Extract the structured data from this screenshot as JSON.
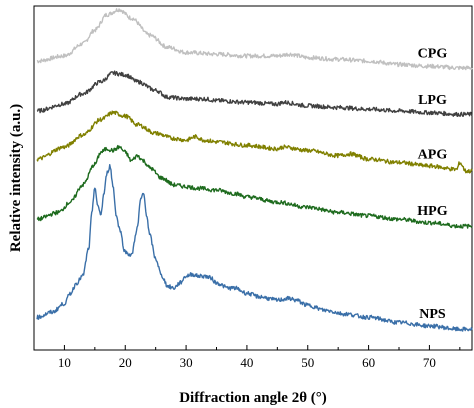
{
  "chart_data": {
    "type": "line",
    "title": "",
    "xlabel": "Diffraction angle 2θ (°)",
    "ylabel": "Relative intensity (a.u.)",
    "xlim": [
      5,
      77
    ],
    "x_ticks": [
      "10",
      "20",
      "30",
      "40",
      "50",
      "60",
      "70"
    ],
    "x_tick_values": [
      10,
      20,
      30,
      40,
      50,
      60,
      70
    ],
    "y_ticks": false,
    "grid": false,
    "legend": "inline labels at right of each curve",
    "series": [
      {
        "name": "CPG",
        "color": "#c0c0c0",
        "offset": 0.84,
        "points": [
          [
            5.5,
            0.0
          ],
          [
            10,
            0.015
          ],
          [
            13,
            0.05
          ],
          [
            15,
            0.09
          ],
          [
            17,
            0.135
          ],
          [
            19,
            0.15
          ],
          [
            21,
            0.125
          ],
          [
            24,
            0.075
          ],
          [
            27,
            0.04
          ],
          [
            30,
            0.025
          ],
          [
            35,
            0.02
          ],
          [
            40,
            0.015
          ],
          [
            45,
            0.015
          ],
          [
            47,
            0.02
          ],
          [
            50,
            0.01
          ],
          [
            55,
            0.005
          ],
          [
            60,
            0.0
          ],
          [
            65,
            -0.01
          ],
          [
            70,
            -0.015
          ],
          [
            75,
            -0.02
          ],
          [
            77,
            -0.02
          ]
        ]
      },
      {
        "name": "LPG",
        "color": "#404040",
        "offset": 0.695,
        "points": [
          [
            5.5,
            0.0
          ],
          [
            10,
            0.02
          ],
          [
            13,
            0.05
          ],
          [
            16,
            0.085
          ],
          [
            18,
            0.11
          ],
          [
            20,
            0.105
          ],
          [
            22,
            0.085
          ],
          [
            25,
            0.06
          ],
          [
            27,
            0.04
          ],
          [
            30,
            0.035
          ],
          [
            33,
            0.035
          ],
          [
            35,
            0.03
          ],
          [
            40,
            0.025
          ],
          [
            45,
            0.02
          ],
          [
            46,
            0.025
          ],
          [
            50,
            0.015
          ],
          [
            55,
            0.01
          ],
          [
            60,
            0.005
          ],
          [
            65,
            0.0
          ],
          [
            70,
            -0.005
          ],
          [
            75,
            -0.01
          ],
          [
            77,
            -0.01
          ]
        ]
      },
      {
        "name": "APG",
        "color": "#808000",
        "offset": 0.555,
        "points": [
          [
            5.5,
            0.0
          ],
          [
            10,
            0.035
          ],
          [
            13,
            0.07
          ],
          [
            16,
            0.115
          ],
          [
            18,
            0.135
          ],
          [
            20,
            0.125
          ],
          [
            22,
            0.1
          ],
          [
            25,
            0.075
          ],
          [
            28,
            0.06
          ],
          [
            30,
            0.055
          ],
          [
            31.5,
            0.065
          ],
          [
            33,
            0.055
          ],
          [
            35,
            0.05
          ],
          [
            40,
            0.04
          ],
          [
            45,
            0.03
          ],
          [
            46,
            0.035
          ],
          [
            50,
            0.025
          ],
          [
            55,
            0.01
          ],
          [
            57,
            0.015
          ],
          [
            60,
            0.0
          ],
          [
            65,
            -0.01
          ],
          [
            70,
            -0.02
          ],
          [
            74.5,
            -0.03
          ],
          [
            75,
            -0.01
          ],
          [
            76,
            -0.035
          ],
          [
            77,
            -0.035
          ]
        ]
      },
      {
        "name": "HPG",
        "color": "#1e6b1e",
        "offset": 0.38,
        "points": [
          [
            5.5,
            0.0
          ],
          [
            9,
            0.02
          ],
          [
            11,
            0.05
          ],
          [
            13,
            0.1
          ],
          [
            15,
            0.16
          ],
          [
            16,
            0.195
          ],
          [
            17,
            0.205
          ],
          [
            18,
            0.2
          ],
          [
            19,
            0.21
          ],
          [
            20,
            0.195
          ],
          [
            21,
            0.17
          ],
          [
            22,
            0.185
          ],
          [
            23,
            0.17
          ],
          [
            24,
            0.15
          ],
          [
            26,
            0.12
          ],
          [
            28,
            0.1
          ],
          [
            30,
            0.095
          ],
          [
            32,
            0.09
          ],
          [
            35,
            0.085
          ],
          [
            38,
            0.075
          ],
          [
            40,
            0.065
          ],
          [
            45,
            0.05
          ],
          [
            50,
            0.035
          ],
          [
            55,
            0.02
          ],
          [
            60,
            0.01
          ],
          [
            65,
            0.0
          ],
          [
            70,
            -0.01
          ],
          [
            75,
            -0.02
          ],
          [
            77,
            -0.02
          ]
        ]
      },
      {
        "name": "NPS",
        "color": "#3a6fa8",
        "offset": 0.095,
        "points": [
          [
            5.5,
            0.0
          ],
          [
            8,
            0.015
          ],
          [
            10,
            0.04
          ],
          [
            11,
            0.07
          ],
          [
            12,
            0.1
          ],
          [
            13,
            0.12
          ],
          [
            14,
            0.2
          ],
          [
            14.5,
            0.3
          ],
          [
            15,
            0.38
          ],
          [
            15.5,
            0.32
          ],
          [
            16,
            0.3
          ],
          [
            16.5,
            0.36
          ],
          [
            17,
            0.42
          ],
          [
            17.5,
            0.44
          ],
          [
            18,
            0.38
          ],
          [
            18.5,
            0.3
          ],
          [
            19,
            0.26
          ],
          [
            20,
            0.19
          ],
          [
            21,
            0.18
          ],
          [
            22,
            0.26
          ],
          [
            22.5,
            0.34
          ],
          [
            23,
            0.36
          ],
          [
            23.5,
            0.3
          ],
          [
            24,
            0.24
          ],
          [
            25,
            0.17
          ],
          [
            26,
            0.12
          ],
          [
            27,
            0.09
          ],
          [
            28,
            0.085
          ],
          [
            29,
            0.1
          ],
          [
            30,
            0.12
          ],
          [
            31,
            0.125
          ],
          [
            32,
            0.12
          ],
          [
            33,
            0.12
          ],
          [
            34,
            0.115
          ],
          [
            35,
            0.1
          ],
          [
            37,
            0.085
          ],
          [
            38,
            0.085
          ],
          [
            40,
            0.07
          ],
          [
            42,
            0.06
          ],
          [
            45,
            0.05
          ],
          [
            47,
            0.055
          ],
          [
            48,
            0.05
          ],
          [
            50,
            0.035
          ],
          [
            53,
            0.02
          ],
          [
            56,
            0.01
          ],
          [
            60,
            0.0
          ],
          [
            65,
            -0.015
          ],
          [
            70,
            -0.025
          ],
          [
            75,
            -0.035
          ],
          [
            77,
            -0.035
          ]
        ]
      }
    ]
  }
}
